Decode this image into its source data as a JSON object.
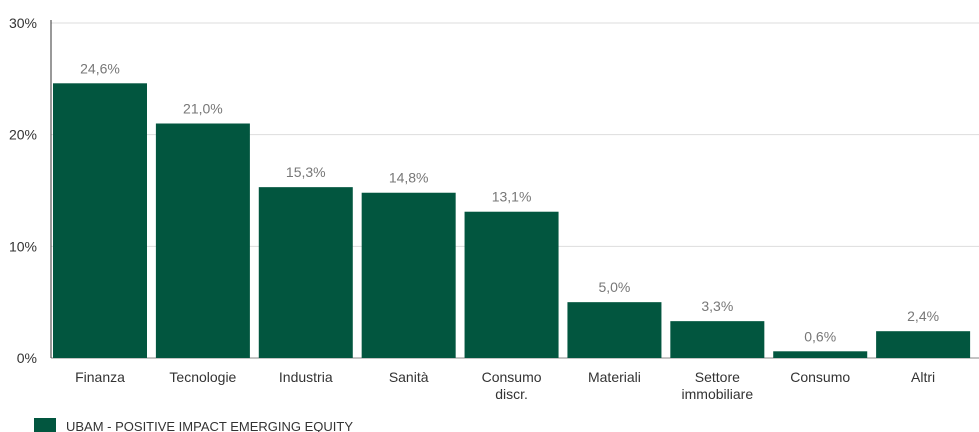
{
  "chart_data": {
    "type": "bar",
    "categories": [
      [
        "Finanza"
      ],
      [
        "Tecnologie"
      ],
      [
        "Industria"
      ],
      [
        "Sanità"
      ],
      [
        "Consumo",
        "discr."
      ],
      [
        "Materiali"
      ],
      [
        "Settore",
        "immobiliare"
      ],
      [
        "Consumo"
      ],
      [
        "Altri"
      ]
    ],
    "series": [
      {
        "name": "UBAM - POSITIVE IMPACT EMERGING EQUITY",
        "color": "#02563f",
        "values": [
          24.6,
          21.0,
          15.3,
          14.8,
          13.1,
          5.0,
          3.3,
          0.6,
          2.4
        ],
        "labels": [
          "24,6%",
          "21,0%",
          "15,3%",
          "14,8%",
          "13,1%",
          "5,0%",
          "3,3%",
          "0,6%",
          "2,4%"
        ]
      }
    ],
    "ylim": [
      0,
      30
    ],
    "yticks": [
      0,
      10,
      20,
      30
    ],
    "ytick_labels": [
      "0%",
      "10%",
      "20%",
      "30%"
    ],
    "grid": true,
    "legend_position": "bottom-left"
  }
}
